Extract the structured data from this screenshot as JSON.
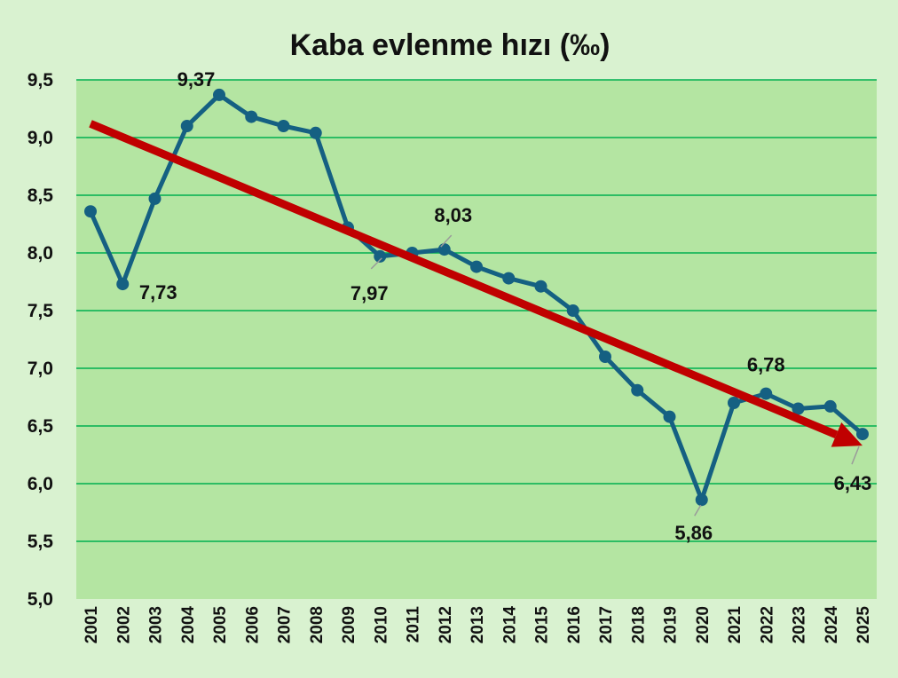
{
  "chart_data": {
    "type": "line",
    "title": "Kaba evlenme hızı (‰)",
    "xlabel": "",
    "ylabel": "",
    "ylim": [
      5.0,
      9.5
    ],
    "y_ticks": [
      "5,0",
      "5,5",
      "6,0",
      "6,5",
      "7,0",
      "7,5",
      "8,0",
      "8,5",
      "9,0",
      "9,5"
    ],
    "grid": true,
    "categories": [
      "2001",
      "2002",
      "2003",
      "2004",
      "2005",
      "2006",
      "2007",
      "2008",
      "2009",
      "2010",
      "2011",
      "2012",
      "2013",
      "2014",
      "2015",
      "2016",
      "2017",
      "2018",
      "2019",
      "2020",
      "2021",
      "2022",
      "2023",
      "2024",
      "2025"
    ],
    "series": [
      {
        "values": [
          8.36,
          7.73,
          8.47,
          9.1,
          9.37,
          9.18,
          9.1,
          9.04,
          8.22,
          7.97,
          8.0,
          8.03,
          7.88,
          7.78,
          7.71,
          7.5,
          7.1,
          6.81,
          6.58,
          5.86,
          6.7,
          6.78,
          6.65,
          6.67,
          6.43
        ],
        "color": "#156082"
      }
    ],
    "data_labels": [
      {
        "category": "2002",
        "text": "7,73"
      },
      {
        "category": "2005",
        "text": "9,37"
      },
      {
        "category": "2010",
        "text": "7,97"
      },
      {
        "category": "2012",
        "text": "8,03"
      },
      {
        "category": "2020",
        "text": "5,86"
      },
      {
        "category": "2022",
        "text": "6,78"
      },
      {
        "category": "2025",
        "text": "6,43"
      }
    ],
    "trend_arrow": {
      "from": {
        "category": "2001",
        "value": 9.12
      },
      "to": {
        "category": "2025",
        "value": 6.33
      },
      "color": "#c00000"
    },
    "colors": {
      "page_background": "#d9f2d0",
      "plot_background": "#b4e5a2",
      "gridline": "#00b050",
      "line": "#156082",
      "arrow": "#c00000"
    }
  }
}
